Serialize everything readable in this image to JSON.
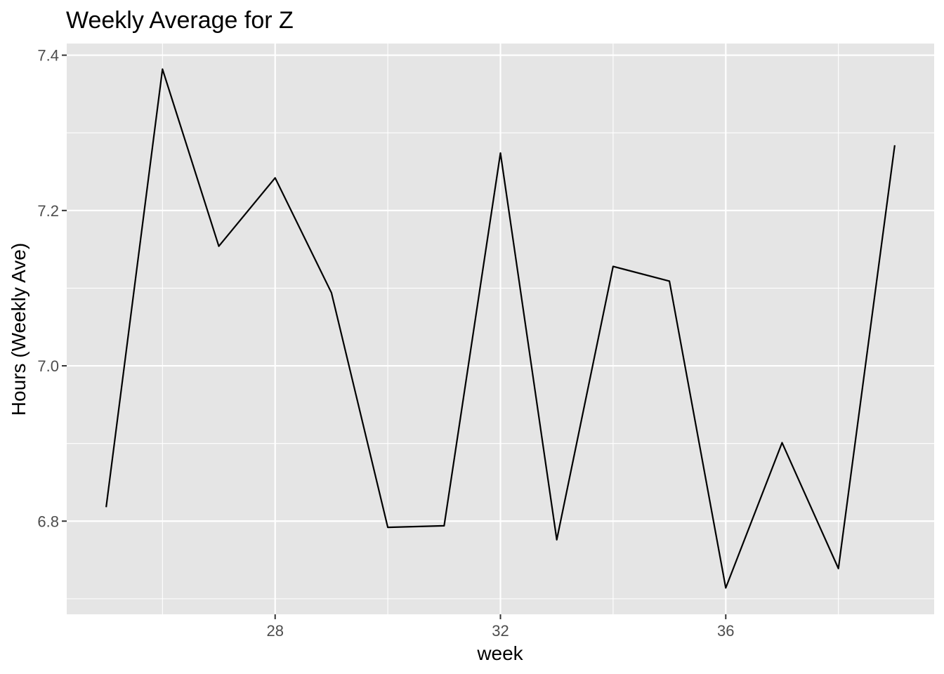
{
  "chart_data": {
    "type": "line",
    "title": "Weekly Average for Z",
    "xlabel": "week",
    "ylabel": "Hours (Weekly Ave)",
    "x": [
      25,
      26,
      27,
      28,
      29,
      30,
      31,
      32,
      33,
      34,
      35,
      36,
      37,
      38,
      39
    ],
    "series": [
      {
        "values": [
          6.818,
          7.382,
          7.154,
          7.242,
          7.094,
          6.792,
          6.794,
          7.274,
          6.776,
          7.128,
          7.109,
          6.714,
          6.901,
          6.739,
          7.284
        ]
      }
    ],
    "xlim": [
      24.3,
      39.7
    ],
    "ylim": [
      6.68,
      7.415
    ],
    "x_major_ticks": [
      28,
      32,
      36
    ],
    "x_minor_ticks": [
      26,
      30,
      34,
      38
    ],
    "y_major_ticks": [
      6.8,
      7.0,
      7.2,
      7.4
    ],
    "y_minor_ticks": [
      6.7,
      6.9,
      7.1,
      7.3
    ],
    "x_tick_labels": [
      "28",
      "32",
      "36"
    ],
    "y_tick_labels": [
      "6.8",
      "7.0",
      "7.2",
      "7.4"
    ],
    "grid": true,
    "legend": "none",
    "colors": {
      "panel_background": "#e5e5e5",
      "grid_line": "#ffffff",
      "series_line": "#000000",
      "tick_text": "#4d4d4d",
      "tick_mark": "#333333"
    }
  }
}
